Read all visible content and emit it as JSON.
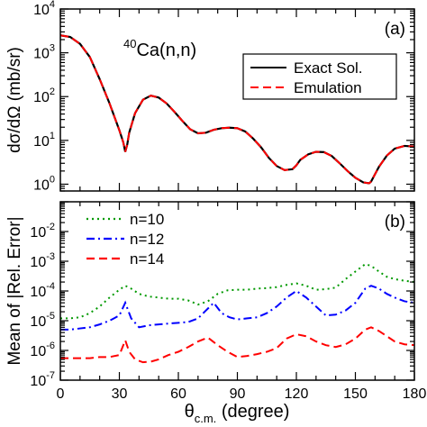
{
  "chart_data": [
    {
      "type": "line",
      "panel_label": "(a)",
      "annotation": "40Ca(n,n)",
      "annotation_parts": {
        "superscript": "40",
        "text": "Ca(n,n)"
      },
      "ylabel": "dσ/dΩ (mb/sr)",
      "yscale": "log",
      "ylim": [
        0.7,
        10000
      ],
      "y_tick_labels": [
        {
          "base": "10",
          "exp": "0",
          "value": 1
        },
        {
          "base": "10",
          "exp": "1",
          "value": 10
        },
        {
          "base": "10",
          "exp": "2",
          "value": 100
        },
        {
          "base": "10",
          "exp": "3",
          "value": 1000
        },
        {
          "base": "10",
          "exp": "4",
          "value": 10000
        }
      ],
      "xlim": [
        0,
        180
      ],
      "legend_position": "upper-right",
      "series": [
        {
          "name": "Exact Sol.",
          "color": "#000000",
          "dash": "solid",
          "x": [
            0,
            5,
            10,
            15,
            20,
            25,
            30,
            32,
            33,
            34,
            35,
            38,
            42,
            46,
            50,
            54,
            58,
            62,
            66,
            70,
            74,
            78,
            82,
            86,
            90,
            94,
            98,
            102,
            106,
            110,
            114,
            118,
            120,
            122,
            126,
            130,
            134,
            138,
            142,
            146,
            150,
            154,
            157,
            158,
            159,
            162,
            166,
            170,
            175,
            180
          ],
          "y": [
            2500,
            2300,
            1600,
            800,
            250,
            70,
            17,
            9,
            5.5,
            8,
            15,
            42,
            85,
            105,
            95,
            70,
            45,
            28,
            18,
            14.5,
            15,
            17.5,
            19,
            19.5,
            19,
            16,
            11,
            7,
            4,
            2.6,
            2.1,
            2.2,
            2.7,
            3.6,
            4.8,
            5.5,
            5.4,
            4.4,
            3.0,
            2.0,
            1.4,
            1.1,
            1.05,
            1.15,
            1.4,
            2.5,
            4.5,
            6.5,
            7.5,
            7.2
          ]
        },
        {
          "name": "Emulation",
          "color": "#ff0000",
          "dash": "dashed",
          "x": [
            0,
            5,
            10,
            15,
            20,
            25,
            30,
            32,
            33,
            34,
            35,
            38,
            42,
            46,
            50,
            54,
            58,
            62,
            66,
            70,
            74,
            78,
            82,
            86,
            90,
            94,
            98,
            102,
            106,
            110,
            114,
            118,
            120,
            122,
            126,
            130,
            134,
            138,
            142,
            146,
            150,
            154,
            157,
            158,
            159,
            162,
            166,
            170,
            175,
            180
          ],
          "y": [
            2500,
            2300,
            1600,
            800,
            250,
            70,
            17,
            9,
            5.5,
            8,
            15,
            42,
            85,
            105,
            95,
            70,
            45,
            28,
            18,
            14.5,
            15,
            17.5,
            19,
            19.5,
            19,
            16,
            11,
            7,
            4,
            2.6,
            2.1,
            2.2,
            2.7,
            3.6,
            4.8,
            5.5,
            5.4,
            4.4,
            3.0,
            2.0,
            1.4,
            1.1,
            1.05,
            1.15,
            1.4,
            2.5,
            4.5,
            6.5,
            7.5,
            7.2
          ]
        }
      ]
    },
    {
      "type": "line",
      "panel_label": "(b)",
      "ylabel": "Mean of |Rel. Error|",
      "yscale": "log",
      "ylim": [
        1e-07,
        0.1
      ],
      "y_tick_labels": [
        {
          "base": "10",
          "exp": "-7",
          "value": 1e-07
        },
        {
          "base": "10",
          "exp": "-6",
          "value": 1e-06
        },
        {
          "base": "10",
          "exp": "-5",
          "value": 1e-05
        },
        {
          "base": "10",
          "exp": "-4",
          "value": 0.0001
        },
        {
          "base": "10",
          "exp": "-3",
          "value": 0.001
        },
        {
          "base": "10",
          "exp": "-2",
          "value": 0.01
        }
      ],
      "xlabel": "θc.m. (degree)",
      "xlabel_parts": {
        "symbol": "θ",
        "subscript": "c.m.",
        "unit": " (degree)"
      },
      "xlim": [
        0,
        180
      ],
      "x_ticks": [
        0,
        30,
        60,
        90,
        120,
        150,
        180
      ],
      "x_tick_labels": [
        "0",
        "30",
        "60",
        "90",
        "120",
        "150",
        "180"
      ],
      "legend_position": "upper-left",
      "series": [
        {
          "name": "n=10",
          "color": "#009900",
          "dash": "dotted",
          "x": [
            0,
            5,
            10,
            15,
            20,
            25,
            30,
            33,
            36,
            40,
            45,
            50,
            55,
            60,
            65,
            70,
            75,
            80,
            85,
            90,
            95,
            100,
            105,
            110,
            115,
            120,
            125,
            130,
            135,
            140,
            145,
            150,
            155,
            158,
            162,
            166,
            170,
            175,
            180
          ],
          "y": [
            1.2e-05,
            1.2e-05,
            1.3e-05,
            1.8e-05,
            3e-05,
            6e-05,
            0.00011,
            0.00015,
            0.00012,
            8e-05,
            6.5e-05,
            6e-05,
            5.5e-05,
            5.5e-05,
            4.8e-05,
            3.5e-05,
            4.5e-05,
            8e-05,
            0.000105,
            0.00011,
            0.00011,
            0.00012,
            0.000125,
            0.000135,
            0.00016,
            0.00018,
            0.00015,
            0.00011,
            0.000115,
            0.00013,
            0.00025,
            0.00045,
            0.0008,
            0.0007,
            0.00045,
            0.0003,
            0.00025,
            0.00022,
            0.0002
          ]
        },
        {
          "name": "n=12",
          "color": "#0000ff",
          "dash": "dashdot",
          "x": [
            0,
            5,
            10,
            15,
            20,
            25,
            30,
            33,
            36,
            40,
            45,
            50,
            55,
            60,
            65,
            70,
            74,
            78,
            82,
            86,
            90,
            95,
            100,
            105,
            110,
            115,
            120,
            125,
            130,
            135,
            140,
            145,
            150,
            155,
            158,
            162,
            166,
            170,
            175,
            180
          ],
          "y": [
            5e-06,
            5e-06,
            5.5e-06,
            6e-06,
            7.5e-06,
            1e-05,
            1.5e-05,
            4e-05,
            1.2e-05,
            6e-06,
            7e-06,
            7.5e-06,
            8e-06,
            8.5e-06,
            9e-06,
            1.2e-05,
            2.2e-05,
            4e-05,
            1.8e-05,
            1.3e-05,
            1.1e-05,
            1.2e-05,
            1.3e-05,
            1.8e-05,
            3e-05,
            6e-05,
            0.0001,
            6e-05,
            3e-05,
            1.5e-05,
            1.6e-05,
            2.2e-05,
            4e-05,
            0.00012,
            0.00015,
            0.00012,
            8e-05,
            6e-05,
            4.5e-05,
            4e-05
          ]
        },
        {
          "name": "n=14",
          "color": "#ff0000",
          "dash": "dashed",
          "x": [
            0,
            5,
            10,
            15,
            20,
            25,
            30,
            33,
            35,
            38,
            42,
            46,
            50,
            55,
            60,
            65,
            70,
            75,
            80,
            85,
            90,
            95,
            100,
            105,
            110,
            115,
            120,
            125,
            130,
            135,
            140,
            145,
            150,
            155,
            158,
            162,
            166,
            170,
            175,
            180
          ],
          "y": [
            5.5e-07,
            5.5e-07,
            5.5e-07,
            5.5e-07,
            6e-07,
            6e-07,
            7e-07,
            2.2e-06,
            9e-07,
            5e-07,
            4e-07,
            4.2e-07,
            5e-07,
            7e-07,
            9e-07,
            1.3e-06,
            2e-06,
            2.7e-06,
            1.5e-06,
            9e-07,
            6e-07,
            6.5e-07,
            7.5e-07,
            9e-07,
            1.2e-06,
            2.5e-06,
            3.5e-06,
            3e-06,
            2e-06,
            1.5e-06,
            1.3e-06,
            1.6e-06,
            2.5e-06,
            5e-06,
            6e-06,
            4.5e-06,
            3e-06,
            2e-06,
            1.6e-06,
            1.5e-06
          ]
        }
      ]
    }
  ]
}
